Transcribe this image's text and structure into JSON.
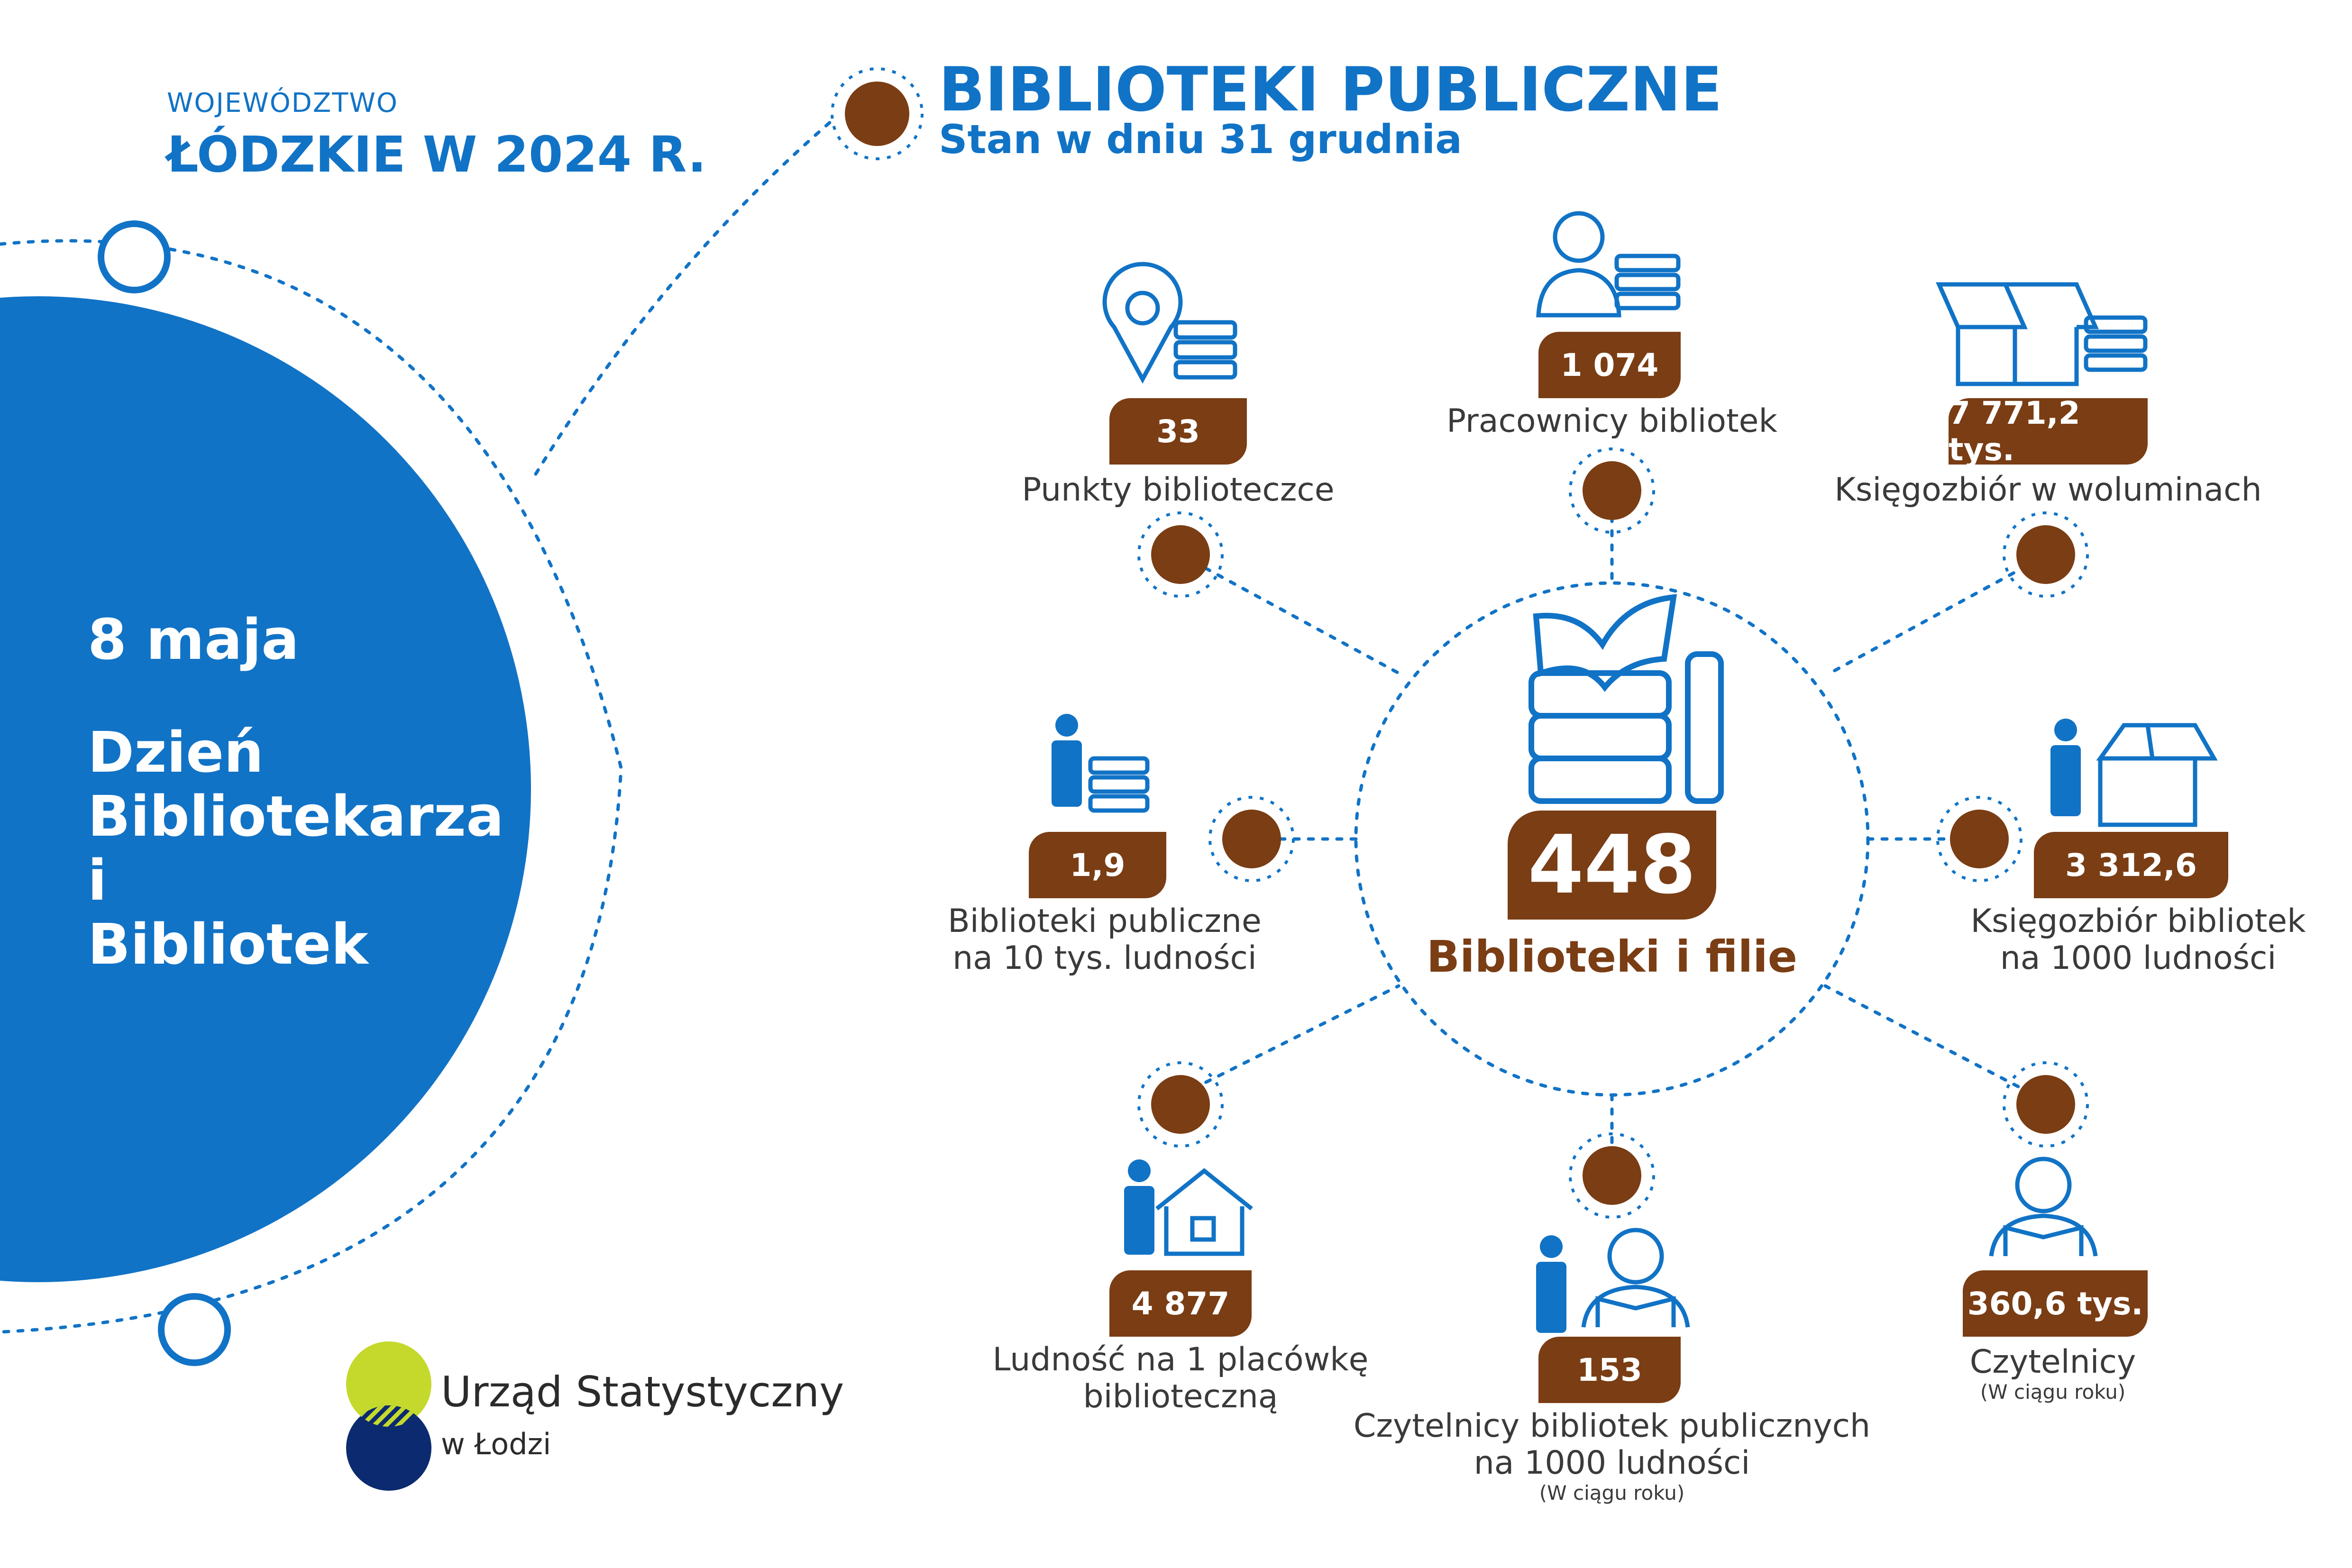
{
  "header": {
    "region_small": "WOJEWÓDZTWO",
    "region_big": "ŁÓDZKIE W 2024 R.",
    "title": "BIBLIOTEKI PUBLICZNE",
    "subtitle": "Stan w dniu 31 grudnia"
  },
  "left_circle": {
    "date": "8 maja",
    "line1": "Dzień",
    "line2": "Bibliotekarza",
    "line3": "i",
    "line4": "Bibliotek"
  },
  "center": {
    "value": "448",
    "label": "Biblioteki i filie"
  },
  "stats": {
    "points": {
      "value": "33",
      "label": "Punkty biblioteczce"
    },
    "staff": {
      "value": "1 074",
      "label": "Pracownicy bibliotek"
    },
    "collection": {
      "value": "7 771,2 tys.",
      "label": "Księgozbiór w woluminach"
    },
    "per10k": {
      "value": "1,9",
      "label1": "Biblioteki publiczne",
      "label2": "na 10 tys. ludności"
    },
    "collection_per1000": {
      "value": "3 312,6",
      "label1": "Księgozbiór bibliotek",
      "label2": "na 1000 ludności"
    },
    "pop_per_unit": {
      "value": "4 877",
      "label1": "Ludność na 1 placówkę",
      "label2": "biblioteczną"
    },
    "readers_per1000": {
      "value": "153",
      "label1": "Czytelnicy bibliotek publicznych",
      "label2": "na 1000 ludności",
      "note": "(W ciągu roku)"
    },
    "readers": {
      "value": "360,6 tys.",
      "label": "Czytelnicy",
      "note": "(W ciągu roku)"
    }
  },
  "logo": {
    "line1": "Urząd Statystyczny",
    "line2": "w Łodzi"
  },
  "colors": {
    "blue": "#1173c6",
    "brown": "#7a3d14",
    "lime": "#c5d92d",
    "navy": "#0b2a6f"
  }
}
